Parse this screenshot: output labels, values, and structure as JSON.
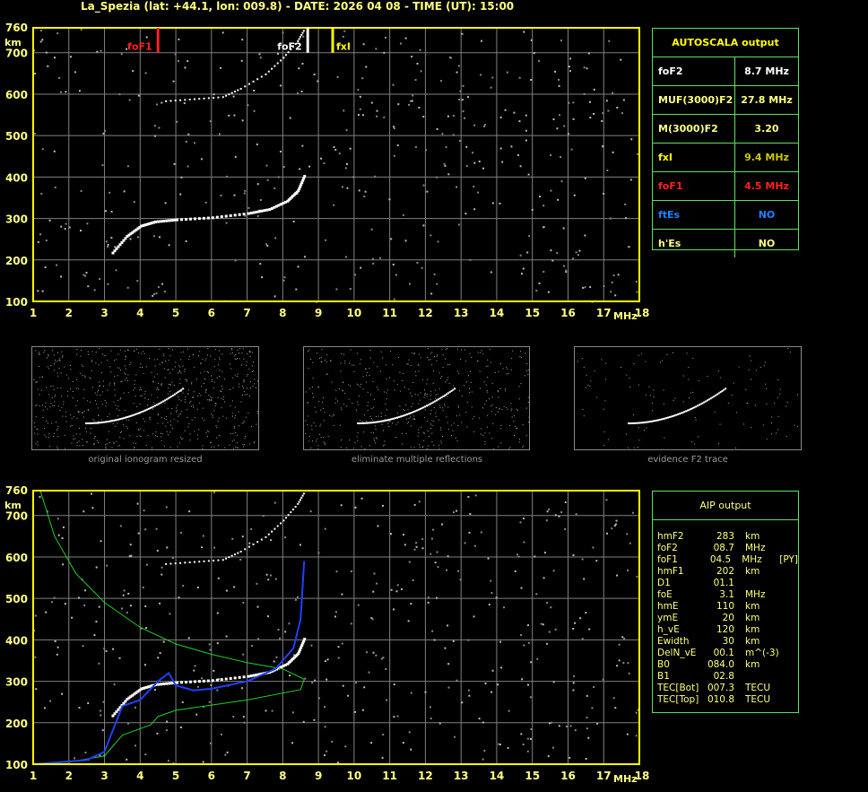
{
  "title": "La_Spezia (lat: +44.1, lon: 009.8) - DATE: 2026 04 08 - TIME (UT): 15:00",
  "axes": {
    "y_unit": "km",
    "x_unit": "MHz",
    "y_ticks": [
      100,
      200,
      300,
      400,
      500,
      600,
      700,
      760
    ],
    "x_ticks": [
      1,
      2,
      3,
      4,
      5,
      6,
      7,
      8,
      9,
      10,
      11,
      12,
      13,
      14,
      15,
      16,
      17,
      18
    ],
    "x_range": [
      1,
      18
    ],
    "y_range": [
      100,
      760
    ]
  },
  "markers": [
    {
      "label": "foF1",
      "freq": 4.5,
      "color": "#ff2020"
    },
    {
      "label": "foF2",
      "freq": 8.7,
      "color": "#ffffff"
    },
    {
      "label": "fxI",
      "freq": 9.4,
      "color": "#ffff00"
    }
  ],
  "autoscala": {
    "title": "AUTOSCALA output",
    "rows": [
      {
        "key": "foF2",
        "value": "8.7 MHz",
        "key_color": "#ffffff",
        "value_color": "#ffffff"
      },
      {
        "key": "MUF(3000)F2",
        "value": "27.8 MHz",
        "key_color": "#ffff80",
        "value_color": "#ffff80"
      },
      {
        "key": "M(3000)F2",
        "value": "3.20",
        "key_color": "#ffff80",
        "value_color": "#ffff80"
      },
      {
        "key": "fxI",
        "value": "9.4 MHz",
        "key_color": "#ffff00",
        "value_color": "#c8c800"
      },
      {
        "key": "foF1",
        "value": "4.5 MHz",
        "key_color": "#ff2020",
        "value_color": "#ff2020"
      },
      {
        "key": "ftEs",
        "value": "NO",
        "key_color": "#2080ff",
        "value_color": "#2080ff"
      },
      {
        "key": "h'Es",
        "value": "NO",
        "key_color": "#ffff80",
        "value_color": "#ffff80"
      }
    ]
  },
  "thumbnails": [
    "original ionogram resized",
    "eliminate multiple reflections",
    "evidence F2 trace"
  ],
  "aip": {
    "title": "AIP output",
    "rows": [
      [
        "hmF2",
        "283",
        "km",
        ""
      ],
      [
        "foF2",
        "08.7",
        "MHz",
        ""
      ],
      [
        "foF1",
        "04.5",
        "MHz",
        "[PY]"
      ],
      [
        "hmF1",
        "202",
        "km",
        ""
      ],
      [
        "D1",
        "01.1",
        "",
        ""
      ],
      [
        "foE",
        "3.1",
        "MHz",
        ""
      ],
      [
        "hmE",
        "110",
        "km",
        ""
      ],
      [
        "ymE",
        "20",
        "km",
        ""
      ],
      [
        "h_vE",
        "120",
        "km",
        ""
      ],
      [
        "Ewidth",
        "30",
        "km",
        ""
      ],
      [
        "DelN_vE",
        "00.1",
        "m^(-3)",
        ""
      ],
      [
        "B0",
        "084.0",
        "km",
        ""
      ],
      [
        "B1",
        "02.8",
        "",
        ""
      ],
      [
        "TEC[Bot]",
        "007.3",
        "TECU",
        ""
      ],
      [
        "TEC[Top]",
        "010.8",
        "TECU",
        ""
      ]
    ]
  },
  "colors": {
    "frame": "#ffff00",
    "grid": "#808080",
    "table_border": "#60e060",
    "profile": "#2040ff",
    "model": "#20d020"
  }
}
